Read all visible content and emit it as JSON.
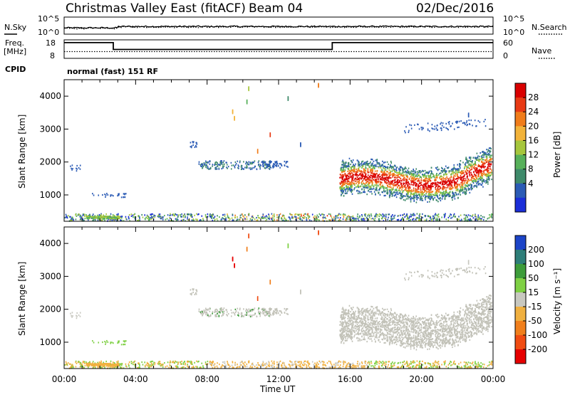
{
  "header": {
    "station": "Christmas Valley East (fitACF)",
    "beam": "Beam 04",
    "date": "02/Dec/2016"
  },
  "noise_panel": {
    "left_label": "N.Sky",
    "right_label": "N.Search",
    "y_ticks_left": [
      "10^5",
      "10^0"
    ],
    "y_ticks_right": [
      "10^5",
      "10^0"
    ]
  },
  "freq_panel": {
    "left_label_1": "Freq.",
    "left_label_2": "[MHz]",
    "y_ticks_left": [
      "18",
      "8"
    ],
    "right_label": "Nave",
    "y_ticks_right": [
      "60",
      "0"
    ],
    "cpid_label": "CPID",
    "cpid_text": "normal (fast) 151 RF"
  },
  "chart_data": [
    {
      "type": "line",
      "name": "noise",
      "x_range_hours": [
        0,
        24
      ],
      "series": [
        {
          "name": "N.Sky",
          "level": 0.45,
          "style": "solid"
        },
        {
          "name": "N.Search",
          "level": 0.42,
          "style": "dotted"
        }
      ]
    },
    {
      "type": "line",
      "name": "frequency-and-nave",
      "x_range_hours": [
        0,
        24
      ],
      "ylim_left": [
        8,
        18
      ],
      "ylim_right": [
        0,
        60
      ],
      "series": [
        {
          "name": "Freq.",
          "x": [
            0,
            2.75,
            2.75,
            15,
            15,
            24
          ],
          "y": [
            16.5,
            16.5,
            12.8,
            12.8,
            16.5,
            16.5
          ],
          "style": "solid"
        },
        {
          "name": "Nave",
          "x": [
            0,
            24
          ],
          "y": [
            22,
            22
          ],
          "style": "dotted"
        }
      ]
    },
    {
      "type": "heatmap",
      "name": "power",
      "xlabel": "",
      "ylabel": "Slant Range [km]",
      "ylim": [
        200,
        4500
      ],
      "y_ticks": [
        1000,
        2000,
        3000,
        4000
      ],
      "colorbar_label": "Power [dB]",
      "colorbar_ticks": [
        "4",
        "8",
        "12",
        "16",
        "20",
        "24",
        "28"
      ],
      "colorbar_colors": [
        "#1b2ed8",
        "#2b5bb5",
        "#3e8a6a",
        "#57b05a",
        "#a6c63c",
        "#f2b33a",
        "#f07c1a",
        "#e83a14",
        "#d90000"
      ]
    },
    {
      "type": "heatmap",
      "name": "velocity",
      "xlabel": "Time UT",
      "ylabel": "Slant Range [km]",
      "ylim": [
        200,
        4500
      ],
      "x_ticks": [
        "00:00",
        "04:00",
        "08:00",
        "12:00",
        "16:00",
        "20:00",
        "00:00"
      ],
      "y_ticks": [
        1000,
        2000,
        3000,
        4000
      ],
      "colorbar_label": "Velocity [m s⁻¹]",
      "colorbar_ticks": [
        "200",
        "100",
        "50",
        "15",
        "-15",
        "-50",
        "-100",
        "-200"
      ],
      "colorbar_colors": [
        "#1c44c7",
        "#2e7e79",
        "#3d9c3a",
        "#7fd044",
        "#c8c8c0",
        "#f0b040",
        "#f07f1c",
        "#f04c12",
        "#e60000"
      ]
    }
  ],
  "colors": {
    "ground_scatter_grey": "#c2c2b8",
    "sea_blue": "#2d5b9c",
    "strong_red": "#e8320a"
  }
}
